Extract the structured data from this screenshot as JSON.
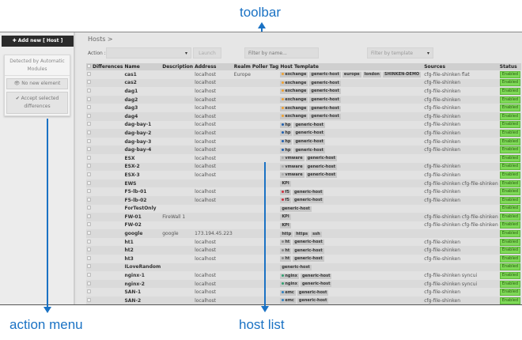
{
  "annotations": {
    "toolbar": "toolbar",
    "action_menu": "action menu",
    "host_list": "host list"
  },
  "left_panel": {
    "add_new": "✚ Add new [ Host ]",
    "detected_title": "Detected by Automatic Modules",
    "no_new": "👁 No new element",
    "accept": "✔ Accept selected differences"
  },
  "toolbar": {
    "breadcrumb": "Hosts >",
    "action_label": "Action :",
    "action_value": "",
    "launch": "Launch",
    "filter_name_placeholder": "Filter by name...",
    "filter_template": "Filter by template"
  },
  "colors": {
    "accent": "#1a72c4",
    "enabled": "#7ed957",
    "add_button": "#2b2b2b"
  },
  "table": {
    "headers": [
      "",
      "Differences",
      "Name",
      "Description",
      "Address",
      "Realm",
      "Poller Tag",
      "Host Template",
      "Sources",
      "Status"
    ],
    "rows": [
      {
        "name": "cas1",
        "description": "",
        "address": "localhost",
        "realm": "Europe",
        "templates": [
          {
            "t": "exchange",
            "c": "#f0a030"
          },
          {
            "t": "generic-host"
          },
          {
            "t": "europe"
          },
          {
            "t": "london"
          },
          {
            "t": "SHINKEN-DEMO"
          }
        ],
        "sources": "cfg-file-shinken flat",
        "status": "Enabled"
      },
      {
        "name": "cas2",
        "description": "",
        "address": "localhost",
        "realm": "",
        "templates": [
          {
            "t": "exchange",
            "c": "#f0a030"
          },
          {
            "t": "generic-host"
          }
        ],
        "sources": "cfg-file-shinken",
        "status": "Enabled"
      },
      {
        "name": "dag1",
        "description": "",
        "address": "localhost",
        "realm": "",
        "templates": [
          {
            "t": "exchange",
            "c": "#f0a030"
          },
          {
            "t": "generic-host"
          }
        ],
        "sources": "cfg-file-shinken",
        "status": "Enabled"
      },
      {
        "name": "dag2",
        "description": "",
        "address": "localhost",
        "realm": "",
        "templates": [
          {
            "t": "exchange",
            "c": "#f0a030"
          },
          {
            "t": "generic-host"
          }
        ],
        "sources": "cfg-file-shinken",
        "status": "Enabled"
      },
      {
        "name": "dag3",
        "description": "",
        "address": "localhost",
        "realm": "",
        "templates": [
          {
            "t": "exchange",
            "c": "#f0a030"
          },
          {
            "t": "generic-host"
          }
        ],
        "sources": "cfg-file-shinken",
        "status": "Enabled"
      },
      {
        "name": "dag4",
        "description": "",
        "address": "localhost",
        "realm": "",
        "templates": [
          {
            "t": "exchange",
            "c": "#f0a030"
          },
          {
            "t": "generic-host"
          }
        ],
        "sources": "cfg-file-shinken",
        "status": "Enabled"
      },
      {
        "name": "dag-bay-1",
        "description": "",
        "address": "localhost",
        "realm": "",
        "templates": [
          {
            "t": "hp",
            "c": "#2060b0"
          },
          {
            "t": "generic-host"
          }
        ],
        "sources": "cfg-file-shinken",
        "status": "Enabled"
      },
      {
        "name": "dag-bay-2",
        "description": "",
        "address": "localhost",
        "realm": "",
        "templates": [
          {
            "t": "hp",
            "c": "#2060b0"
          },
          {
            "t": "generic-host"
          }
        ],
        "sources": "cfg-file-shinken",
        "status": "Enabled"
      },
      {
        "name": "dag-bay-3",
        "description": "",
        "address": "localhost",
        "realm": "",
        "templates": [
          {
            "t": "hp",
            "c": "#2060b0"
          },
          {
            "t": "generic-host"
          }
        ],
        "sources": "cfg-file-shinken",
        "status": "Enabled"
      },
      {
        "name": "dag-bay-4",
        "description": "",
        "address": "localhost",
        "realm": "",
        "templates": [
          {
            "t": "hp",
            "c": "#2060b0"
          },
          {
            "t": "generic-host"
          }
        ],
        "sources": "cfg-file-shinken",
        "status": "Enabled"
      },
      {
        "name": "ESX",
        "description": "",
        "address": "localhost",
        "realm": "",
        "templates": [
          {
            "t": "vmware",
            "c": "#aaaaaa"
          },
          {
            "t": "generic-host"
          }
        ],
        "sources": "",
        "status": "Enabled"
      },
      {
        "name": "ESX-2",
        "description": "",
        "address": "localhost",
        "realm": "",
        "templates": [
          {
            "t": "vmware",
            "c": "#aaaaaa"
          },
          {
            "t": "generic-host"
          }
        ],
        "sources": "cfg-file-shinken",
        "status": "Enabled"
      },
      {
        "name": "ESX-3",
        "description": "",
        "address": "localhost",
        "realm": "",
        "templates": [
          {
            "t": "vmware",
            "c": "#aaaaaa"
          },
          {
            "t": "generic-host"
          }
        ],
        "sources": "cfg-file-shinken",
        "status": "Enabled"
      },
      {
        "name": "EWS",
        "description": "",
        "address": "",
        "realm": "",
        "templates": [
          {
            "t": "KPI"
          }
        ],
        "sources": "cfg-file-shinken cfg-file-shinken",
        "status": "Enabled"
      },
      {
        "name": "F5-lb-01",
        "description": "",
        "address": "localhost",
        "realm": "",
        "templates": [
          {
            "t": "f5",
            "c": "#d03040"
          },
          {
            "t": "generic-host"
          }
        ],
        "sources": "cfg-file-shinken",
        "status": "Enabled"
      },
      {
        "name": "F5-lb-02",
        "description": "",
        "address": "localhost",
        "realm": "",
        "templates": [
          {
            "t": "f5",
            "c": "#d03040"
          },
          {
            "t": "generic-host"
          }
        ],
        "sources": "cfg-file-shinken",
        "status": "Enabled"
      },
      {
        "name": "ForTestOnly",
        "description": "",
        "address": "",
        "realm": "",
        "templates": [
          {
            "t": "generic-host"
          }
        ],
        "sources": "",
        "status": "Enabled"
      },
      {
        "name": "FW-01",
        "description": "FireWall 1",
        "address": "",
        "realm": "",
        "templates": [
          {
            "t": "KPI"
          }
        ],
        "sources": "cfg-file-shinken cfg-file-shinken",
        "status": "Enabled"
      },
      {
        "name": "FW-02",
        "description": "",
        "address": "",
        "realm": "",
        "templates": [
          {
            "t": "KPI"
          }
        ],
        "sources": "cfg-file-shinken cfg-file-shinken",
        "status": "Enabled"
      },
      {
        "name": "google",
        "description": "google",
        "address": "173.194.45.223",
        "realm": "",
        "templates": [
          {
            "t": "http"
          },
          {
            "t": "https"
          },
          {
            "t": "ssh"
          }
        ],
        "sources": "",
        "status": "Enabled"
      },
      {
        "name": "ht1",
        "description": "",
        "address": "localhost",
        "realm": "",
        "templates": [
          {
            "t": "ht",
            "c": "#888888"
          },
          {
            "t": "generic-host"
          }
        ],
        "sources": "cfg-file-shinken",
        "status": "Enabled"
      },
      {
        "name": "ht2",
        "description": "",
        "address": "localhost",
        "realm": "",
        "templates": [
          {
            "t": "ht",
            "c": "#888888"
          },
          {
            "t": "generic-host"
          }
        ],
        "sources": "cfg-file-shinken",
        "status": "Enabled"
      },
      {
        "name": "ht3",
        "description": "",
        "address": "localhost",
        "realm": "",
        "templates": [
          {
            "t": "ht",
            "c": "#888888"
          },
          {
            "t": "generic-host"
          }
        ],
        "sources": "cfg-file-shinken",
        "status": "Enabled"
      },
      {
        "name": "ILoveRandom",
        "description": "",
        "address": "",
        "realm": "",
        "templates": [
          {
            "t": "generic-host"
          }
        ],
        "sources": "",
        "status": "Enabled"
      },
      {
        "name": "nginx-1",
        "description": "",
        "address": "localhost",
        "realm": "",
        "templates": [
          {
            "t": "nginx",
            "c": "#30a070"
          },
          {
            "t": "generic-host"
          }
        ],
        "sources": "cfg-file-shinken syncui",
        "status": "Enabled"
      },
      {
        "name": "nginx-2",
        "description": "",
        "address": "localhost",
        "realm": "",
        "templates": [
          {
            "t": "nginx",
            "c": "#30a070"
          },
          {
            "t": "generic-host"
          }
        ],
        "sources": "cfg-file-shinken syncui",
        "status": "Enabled"
      },
      {
        "name": "SAN-1",
        "description": "",
        "address": "localhost",
        "realm": "",
        "templates": [
          {
            "t": "emc",
            "c": "#3080c0"
          },
          {
            "t": "generic-host"
          }
        ],
        "sources": "cfg-file-shinken",
        "status": "Enabled"
      },
      {
        "name": "SAN-2",
        "description": "",
        "address": "localhost",
        "realm": "",
        "templates": [
          {
            "t": "emc",
            "c": "#3080c0"
          },
          {
            "t": "generic-host"
          }
        ],
        "sources": "cfg-file-shinken",
        "status": "Enabled"
      }
    ]
  }
}
